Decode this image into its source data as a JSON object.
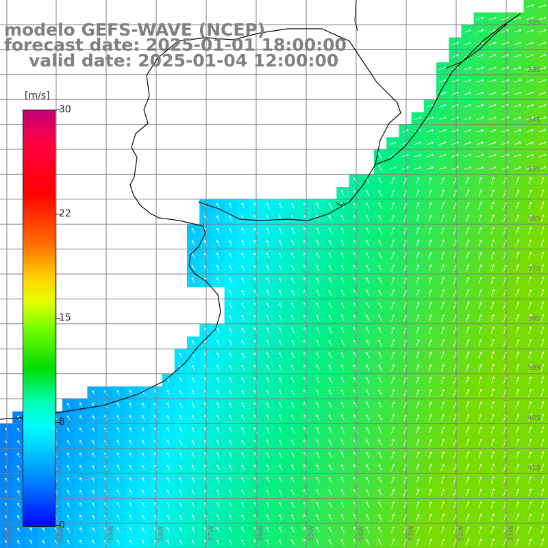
{
  "header": {
    "line1": "modelo GEFS-WAVE (NCEP)",
    "line2": "forecast date: 2025-01-01 18:00:00",
    "line3": "valid date: 2025-01-04 12:00:00"
  },
  "colorbar": {
    "unit": "[m/s]",
    "ticks": [
      "30",
      "22",
      "15",
      "8",
      "0"
    ],
    "colors": [
      "#c0007a",
      "#ff0000",
      "#ff6a00",
      "#ffd000",
      "#7cff00",
      "#00dd00",
      "#00ffff",
      "#0064ff",
      "#0000ff"
    ]
  },
  "lat_labels": [
    "32S",
    "33S",
    "34S",
    "35S",
    "36S",
    "37S",
    "38S",
    "39S",
    "40S",
    "41S"
  ],
  "lon_labels": [
    "61W",
    "60W",
    "59W",
    "58W",
    "57W",
    "56W",
    "55W",
    "54W",
    "53W",
    "52W",
    "51W"
  ],
  "map": {
    "land_color": "#ffffff",
    "grid_color": "#808080",
    "coast_color": "#000000",
    "arrow_color": "#ffffff",
    "field": "wind speed and direction"
  }
}
